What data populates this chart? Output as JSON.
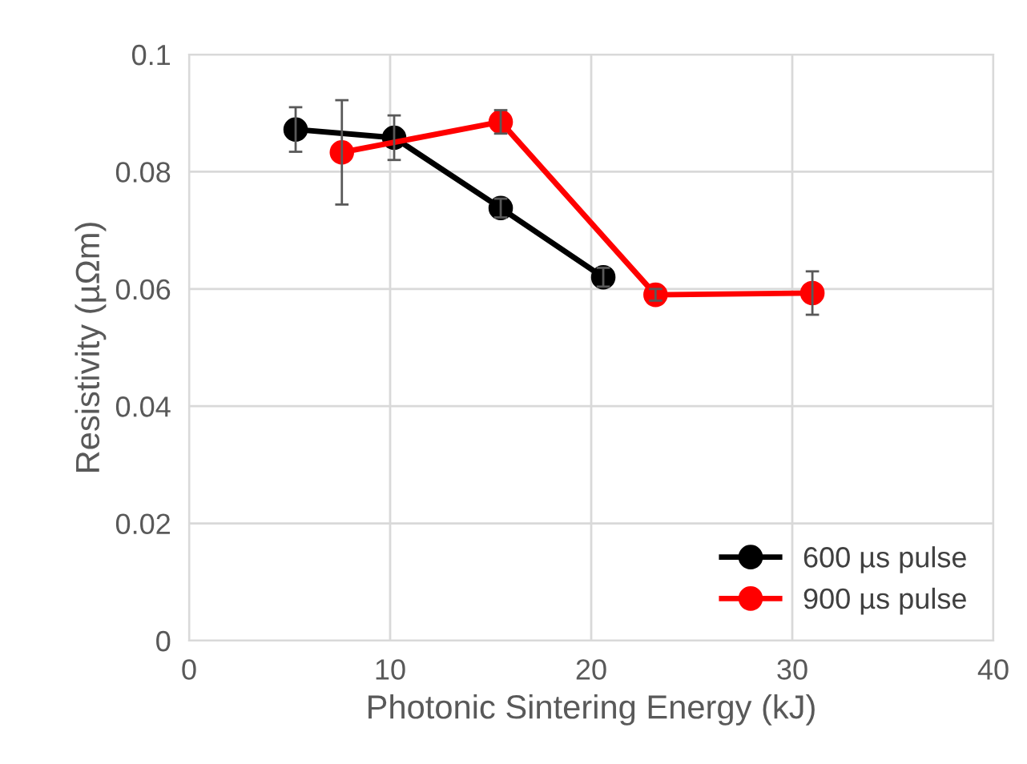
{
  "chart_data": {
    "type": "line",
    "xlabel": "Photonic Sintering Energy (kJ)",
    "ylabel": "Resistivity (µΩm)",
    "xlim": [
      0,
      40
    ],
    "xticks": [
      0,
      10,
      20,
      30,
      40
    ],
    "ylim": [
      0,
      0.1
    ],
    "yticks": [
      0,
      0.02,
      0.04,
      0.06,
      0.08,
      {
        "value": 0.1,
        "label": "0.1"
      }
    ],
    "grid": true,
    "legend": "bottom right",
    "marker": "circle",
    "line_style": "solid",
    "series": [
      {
        "name": "600 µs pulse",
        "color": "#000000",
        "x": [
          5.3,
          10.2,
          15.5,
          20.6
        ],
        "values": [
          0.0872,
          0.0858,
          0.0738,
          0.062
        ],
        "errors": [
          0.0038,
          0.0038,
          0.0016,
          0.0016
        ]
      },
      {
        "name": "900 µs pulse",
        "color": "#ff0000",
        "x": [
          7.6,
          15.5,
          23.2,
          31.0
        ],
        "values": [
          0.0833,
          0.0885,
          0.059,
          0.0593
        ],
        "errors": [
          0.0089,
          0.002,
          0.001,
          0.0037
        ]
      }
    ]
  }
}
